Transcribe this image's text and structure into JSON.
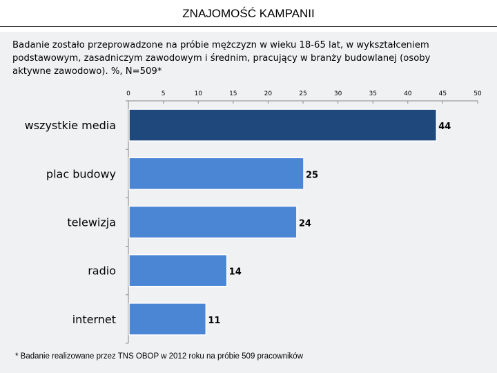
{
  "header": {
    "title": "ZNAJOMOŚĆ KAMPANII"
  },
  "subtitle": "Badanie zostało przeprowadzone na próbie mężczyzn w wieku 18-65 lat, w wykształceniem podstawowym, zasadniczym zawodowym i średnim, pracujący w branży budowlanej (osoby aktywne zawodowo).  %, N=509*",
  "footnote": "* Badanie realizowane przez TNS OBOP w 2012 roku na próbie 509 pracowników",
  "chart_data": {
    "type": "bar",
    "orientation": "horizontal",
    "categories": [
      "wszystkie media",
      "plac budowy",
      "telewizja",
      "radio",
      "internet"
    ],
    "values": [
      44,
      25,
      24,
      14,
      11
    ],
    "xlim": [
      0,
      50
    ],
    "x_ticks": [
      0,
      5,
      10,
      15,
      20,
      25,
      30,
      35,
      40,
      45,
      50
    ],
    "x_axis_position": "top",
    "grid": false,
    "legend": "none",
    "colors": {
      "highlight": "#1f497d",
      "default": "#4a86d4",
      "bar_border": "#ffffff"
    }
  }
}
